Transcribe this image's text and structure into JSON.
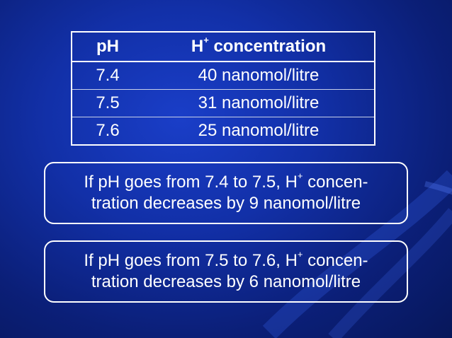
{
  "table": {
    "headers": {
      "ph": "pH",
      "conc_prefix": "H",
      "conc_sup": "+",
      "conc_suffix": " concentration"
    },
    "rows": [
      {
        "ph": "7.4",
        "conc": "40 nanomol/litre"
      },
      {
        "ph": "7.5",
        "conc": "31 nanomol/litre"
      },
      {
        "ph": "7.6",
        "conc": "25 nanomol/litre"
      }
    ]
  },
  "boxes": [
    {
      "line1_prefix": "If pH goes from 7.4 to 7.5, H",
      "sup": "+",
      "line1_suffix": " concen-",
      "line2": "tration decreases by 9 nanomol/litre"
    },
    {
      "line1_prefix": "If pH goes from 7.5 to 7.6, H",
      "sup": "+",
      "line1_suffix": " concen-",
      "line2": "tration decreases by 6 nanomol/litre"
    }
  ],
  "colors": {
    "background": "#1230a8",
    "text": "#ffffff",
    "border": "#ffffff"
  }
}
